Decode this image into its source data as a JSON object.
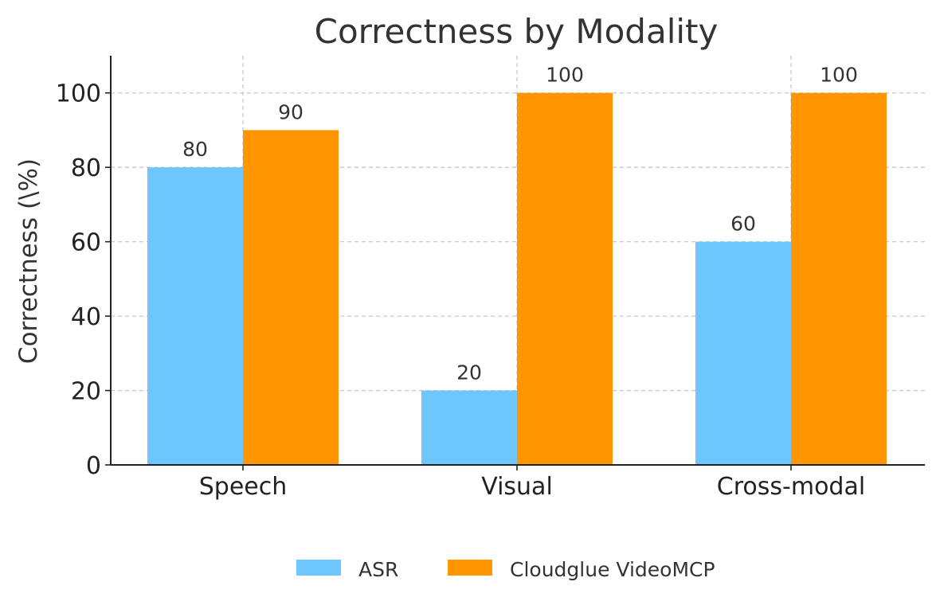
{
  "chart_data": {
    "type": "bar",
    "title": "Correctness by Modality",
    "xlabel": "",
    "ylabel": "Correctness (\\%)",
    "categories": [
      "Speech",
      "Visual",
      "Cross-modal"
    ],
    "series": [
      {
        "name": "ASR",
        "values": [
          80,
          20,
          60
        ],
        "color": "#6ec6ff"
      },
      {
        "name": "Cloudglue VideoMCP",
        "values": [
          90,
          100,
          100
        ],
        "color": "#ff9500"
      }
    ],
    "ylim": [
      0,
      110
    ],
    "yticks": [
      0,
      20,
      40,
      60,
      80,
      100
    ],
    "grid": true,
    "legend_position": "bottom-center",
    "data_labels": true
  }
}
